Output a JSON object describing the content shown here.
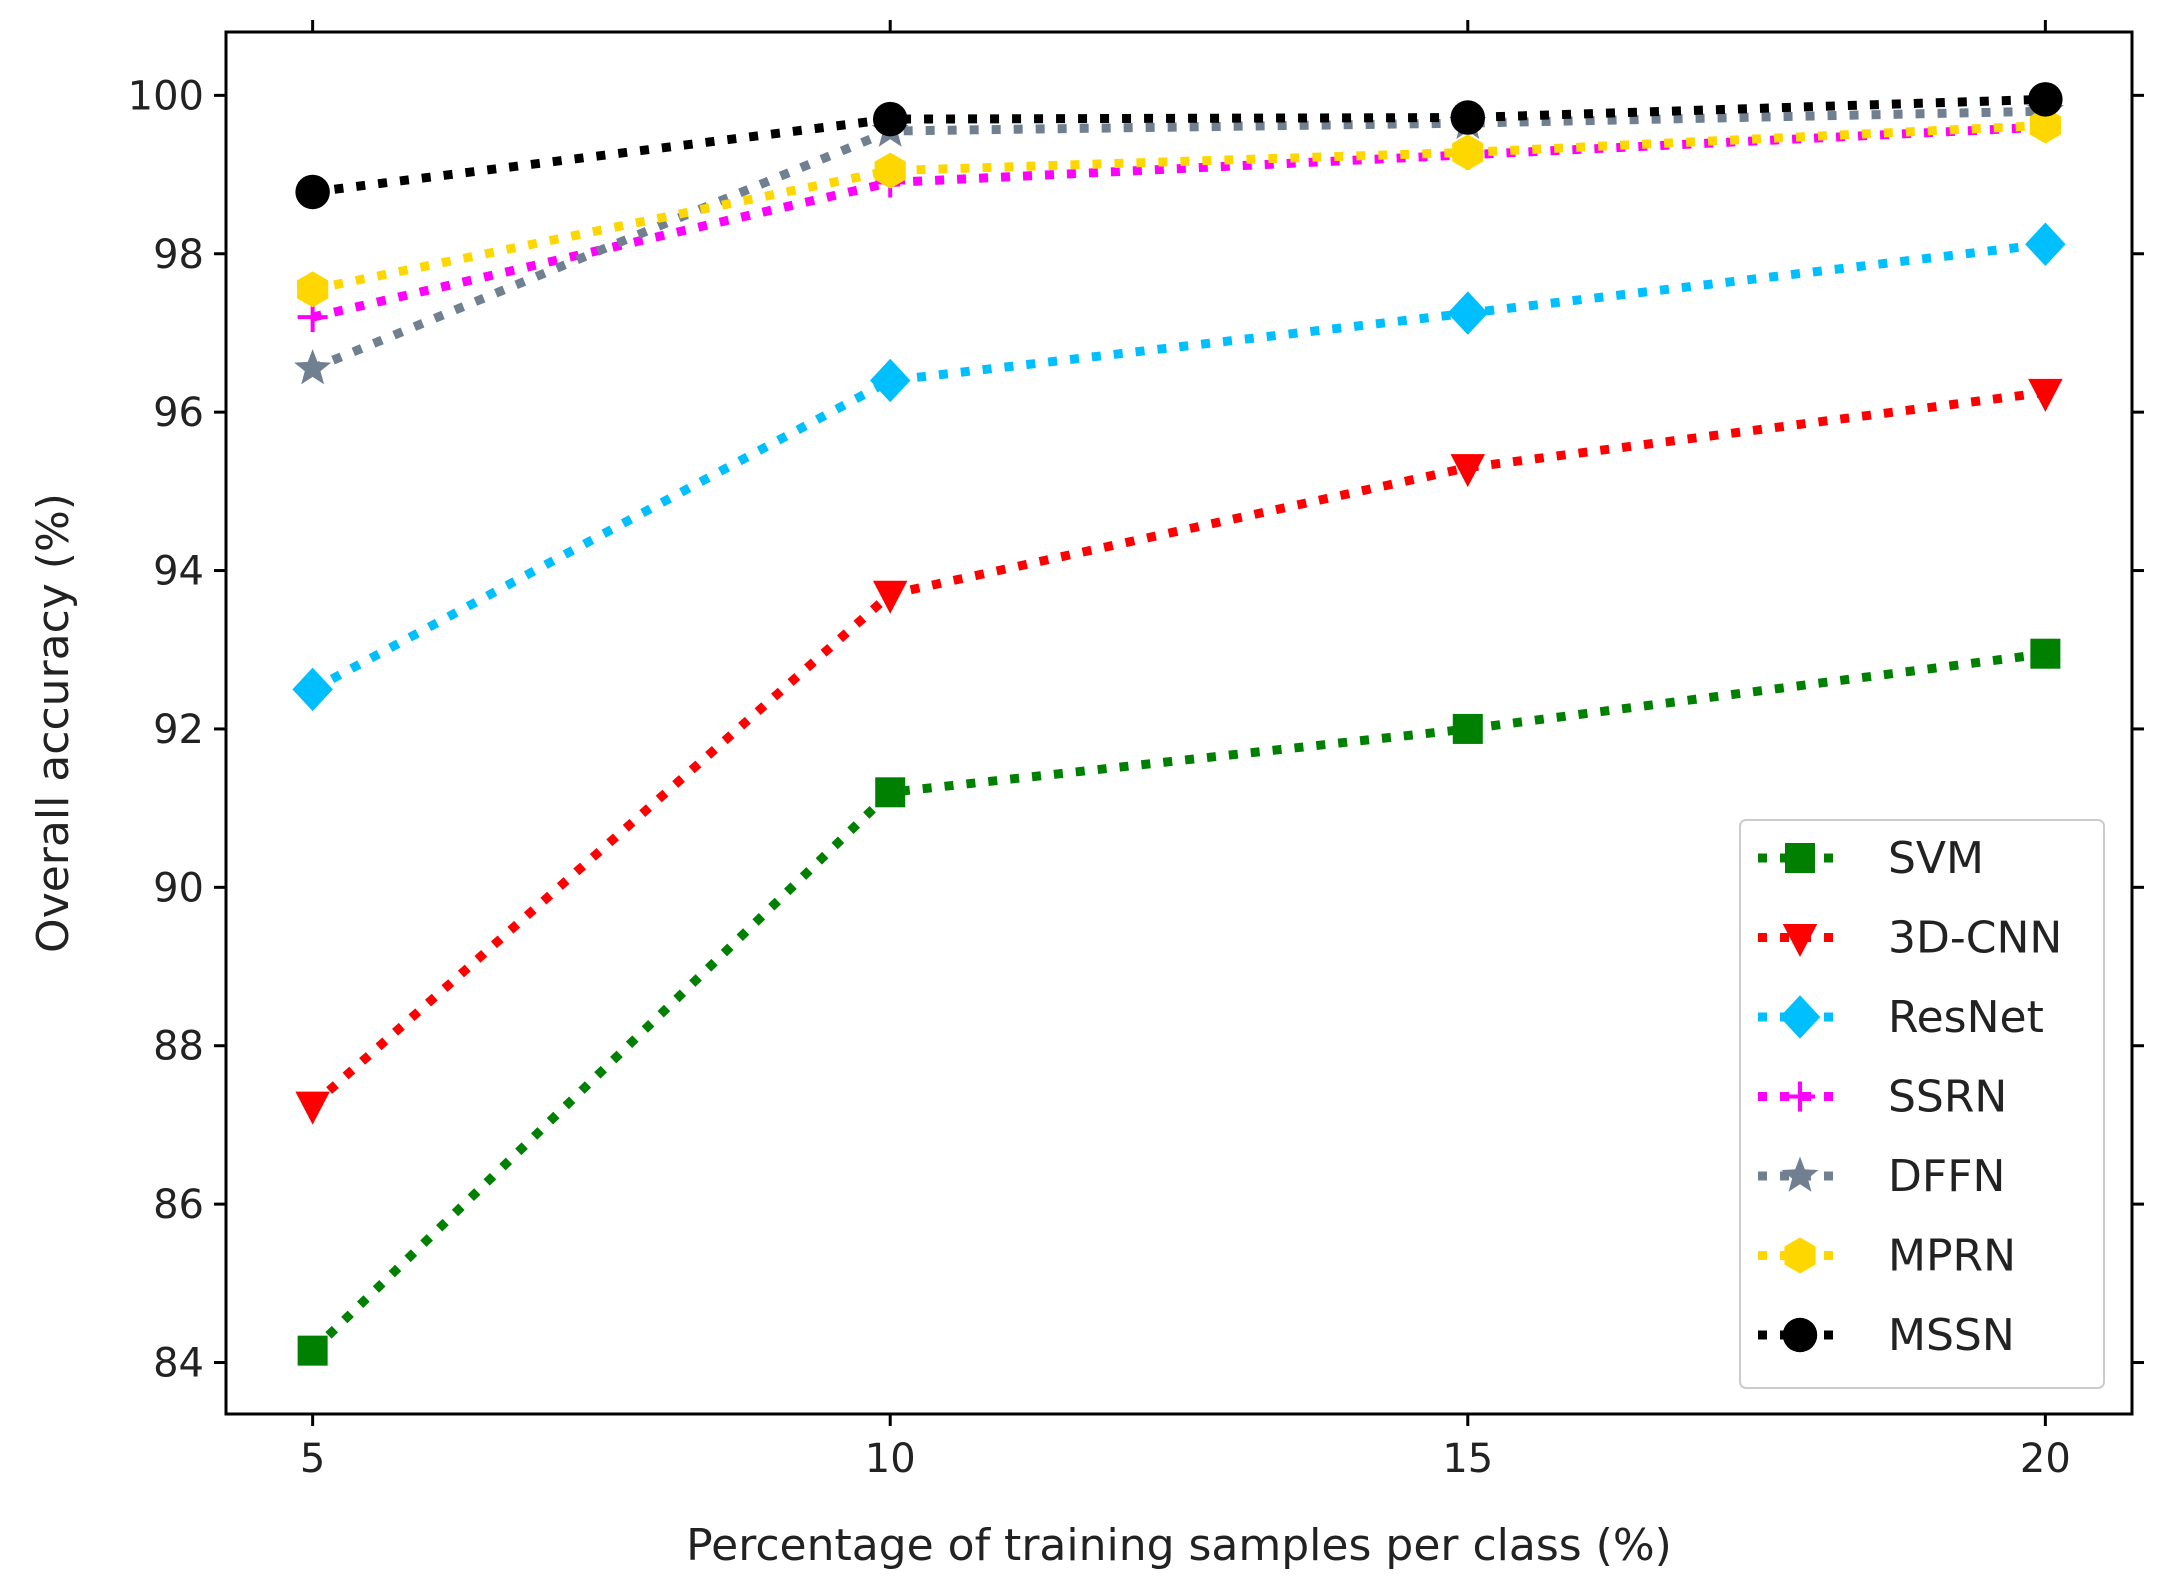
{
  "chart_data": {
    "type": "line",
    "title": "",
    "xlabel": "Percentage of training samples per class (%)",
    "ylabel": "Overall accuracy (%)",
    "x": [
      5,
      10,
      15,
      20
    ],
    "xlim": [
      4.25,
      20.75
    ],
    "ylim": [
      83.35,
      100.8
    ],
    "xticks": [
      5,
      10,
      15,
      20
    ],
    "yticks": [
      84,
      86,
      88,
      90,
      92,
      94,
      96,
      98,
      100
    ],
    "grid": false,
    "legend_position": "lower-right",
    "series": [
      {
        "name": "SVM",
        "color": "#008000",
        "marker": "square",
        "values": [
          84.15,
          91.2,
          92.0,
          92.95
        ]
      },
      {
        "name": "3D-CNN",
        "color": "#ff0000",
        "marker": "triangle-down",
        "values": [
          87.25,
          93.7,
          95.3,
          96.25
        ]
      },
      {
        "name": "ResNet",
        "color": "#00bfff",
        "marker": "diamond",
        "values": [
          92.5,
          96.4,
          97.25,
          98.12
        ]
      },
      {
        "name": "SSRN",
        "color": "#ff00ff",
        "marker": "plus",
        "values": [
          97.2,
          98.9,
          99.25,
          99.6
        ]
      },
      {
        "name": "DFFN",
        "color": "#708090",
        "marker": "star",
        "values": [
          96.55,
          99.55,
          99.65,
          99.8
        ]
      },
      {
        "name": "MPRN",
        "color": "#ffd700",
        "marker": "hexagon",
        "values": [
          97.55,
          99.05,
          99.28,
          99.62
        ]
      },
      {
        "name": "MSSN",
        "color": "#000000",
        "marker": "circle",
        "values": [
          98.78,
          99.7,
          99.72,
          99.95
        ]
      }
    ]
  }
}
